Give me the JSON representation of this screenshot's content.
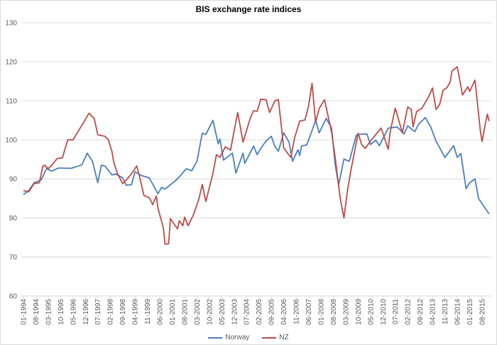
{
  "chart_data": {
    "type": "line",
    "title": "BIS exchange rate indices",
    "xlabel": "",
    "ylabel": "",
    "ylim": [
      60,
      130
    ],
    "yticks": [
      "60",
      "70",
      "80",
      "90",
      "100",
      "110",
      "120",
      "130"
    ],
    "xrange": [
      "01-1994",
      "12-2015"
    ],
    "xticks": [
      "01-1994",
      "08-1994",
      "03-1995",
      "10-1995",
      "05-1996",
      "12-1996",
      "07-1997",
      "02-1998",
      "09-1998",
      "04-1999",
      "11-1999",
      "06-2000",
      "01-2001",
      "08-2001",
      "03-2002",
      "10-2002",
      "05-2003",
      "12-2003",
      "07-2004",
      "02-2005",
      "09-2005",
      "04-2006",
      "11-2006",
      "06-2007",
      "01-2008",
      "08-2008",
      "03-2009",
      "10-2009",
      "05-2010",
      "12-2010",
      "07-2011",
      "02-2012",
      "09-2012",
      "04-2013",
      "11-2013",
      "06-2014",
      "01-2015",
      "08-2015"
    ],
    "grid": "horizontal",
    "legend": "bottom",
    "series": [
      {
        "name": "Norway",
        "color": "#4a7ebb",
        "points": [
          [
            "01-1994",
            86
          ],
          [
            "04-1994",
            87
          ],
          [
            "07-1994",
            89
          ],
          [
            "11-1994",
            89.7
          ],
          [
            "02-1995",
            92.6
          ],
          [
            "05-1995",
            92
          ],
          [
            "09-1995",
            92.8
          ],
          [
            "04-1996",
            92.7
          ],
          [
            "10-1996",
            93.6
          ],
          [
            "01-1997",
            96.6
          ],
          [
            "04-1997",
            94.5
          ],
          [
            "07-1997",
            89
          ],
          [
            "09-1997",
            93.5
          ],
          [
            "11-1997",
            93.3
          ],
          [
            "03-1998",
            91
          ],
          [
            "05-1998",
            91.3
          ],
          [
            "09-1998",
            90.3
          ],
          [
            "11-1998",
            88.4
          ],
          [
            "02-1999",
            88.5
          ],
          [
            "04-1999",
            91.8
          ],
          [
            "08-1999",
            90.8
          ],
          [
            "12-1999",
            90.3
          ],
          [
            "05-2000",
            86.2
          ],
          [
            "07-2000",
            87.8
          ],
          [
            "09-2000",
            87.4
          ],
          [
            "12-2000",
            88.5
          ],
          [
            "04-2001",
            90
          ],
          [
            "09-2001",
            92.6
          ],
          [
            "12-2001",
            92.1
          ],
          [
            "03-2002",
            94.5
          ],
          [
            "06-2002",
            101.7
          ],
          [
            "08-2002",
            101.4
          ],
          [
            "12-2002",
            105
          ],
          [
            "03-2003",
            99
          ],
          [
            "04-2003",
            100.2
          ],
          [
            "06-2003",
            94.8
          ],
          [
            "11-2003",
            96.6
          ],
          [
            "01-2004",
            91.5
          ],
          [
            "05-2004",
            96.6
          ],
          [
            "06-2004",
            94
          ],
          [
            "11-2004",
            98.4
          ],
          [
            "01-2005",
            96.2
          ],
          [
            "03-2005",
            97.8
          ],
          [
            "06-2005",
            99.7
          ],
          [
            "09-2005",
            100.9
          ],
          [
            "11-2005",
            98.3
          ],
          [
            "01-2006",
            97.1
          ],
          [
            "04-2006",
            101.8
          ],
          [
            "07-2006",
            99.4
          ],
          [
            "09-2006",
            94.5
          ],
          [
            "12-2006",
            97.5
          ],
          [
            "01-2007",
            96
          ],
          [
            "02-2007",
            98.4
          ],
          [
            "05-2007",
            98.7
          ],
          [
            "07-2007",
            101.1
          ],
          [
            "10-2007",
            105
          ],
          [
            "12-2007",
            101.8
          ],
          [
            "04-2008",
            105.5
          ],
          [
            "07-2008",
            103
          ],
          [
            "09-2008",
            93.9
          ],
          [
            "11-2008",
            88.4
          ],
          [
            "02-2009",
            95.1
          ],
          [
            "05-2009",
            94.5
          ],
          [
            "09-2009",
            101.2
          ],
          [
            "12-2009",
            101.5
          ],
          [
            "03-2010",
            101.5
          ],
          [
            "05-2010",
            98.8
          ],
          [
            "08-2010",
            99.9
          ],
          [
            "10-2010",
            98.5
          ],
          [
            "03-2011",
            103
          ],
          [
            "08-2011",
            103.3
          ],
          [
            "12-2011",
            101.5
          ],
          [
            "02-2012",
            103.6
          ],
          [
            "06-2012",
            102.1
          ],
          [
            "08-2012",
            103.9
          ],
          [
            "12-2012",
            105.7
          ],
          [
            "03-2013",
            103.3
          ],
          [
            "06-2013",
            99.7
          ],
          [
            "11-2013",
            95.5
          ],
          [
            "04-2014",
            98.5
          ],
          [
            "06-2014",
            95.5
          ],
          [
            "08-2014",
            96.5
          ],
          [
            "11-2014",
            87.5
          ],
          [
            "01-2015",
            89
          ],
          [
            "04-2015",
            90
          ],
          [
            "06-2015",
            85
          ],
          [
            "09-2015",
            83
          ],
          [
            "12-2015",
            81
          ]
        ]
      },
      {
        "name": "NZ",
        "color": "#be4b48",
        "points": [
          [
            "01-1994",
            87
          ],
          [
            "04-1994",
            86.7
          ],
          [
            "07-1994",
            88.8
          ],
          [
            "10-1994",
            89
          ],
          [
            "12-1994",
            93.3
          ],
          [
            "01-1995",
            93.5
          ],
          [
            "03-1995",
            92.6
          ],
          [
            "05-1995",
            93.5
          ],
          [
            "08-1995",
            95.2
          ],
          [
            "11-1995",
            95.4
          ],
          [
            "02-1996",
            100
          ],
          [
            "05-1996",
            100
          ],
          [
            "07-1996",
            101.5
          ],
          [
            "11-1996",
            104.5
          ],
          [
            "02-1997",
            106.8
          ],
          [
            "05-1997",
            105.4
          ],
          [
            "07-1997",
            101.3
          ],
          [
            "11-1997",
            100.9
          ],
          [
            "01-1998",
            100
          ],
          [
            "03-1998",
            97
          ],
          [
            "04-1998",
            94.3
          ],
          [
            "06-1998",
            91.5
          ],
          [
            "09-1998",
            88.8
          ],
          [
            "11-1998",
            89.7
          ],
          [
            "02-1999",
            91.3
          ],
          [
            "05-1999",
            93.3
          ],
          [
            "07-1999",
            89.8
          ],
          [
            "09-1999",
            85.8
          ],
          [
            "12-1999",
            85.2
          ],
          [
            "02-2000",
            83.4
          ],
          [
            "04-2000",
            85.6
          ],
          [
            "05-2000",
            82.5
          ],
          [
            "08-2000",
            77.5
          ],
          [
            "09-2000",
            73.3
          ],
          [
            "11-2000",
            73.4
          ],
          [
            "12-2000",
            79.8
          ],
          [
            "04-2001",
            77.2
          ],
          [
            "05-2001",
            79.3
          ],
          [
            "07-2001",
            78
          ],
          [
            "08-2001",
            80.2
          ],
          [
            "10-2001",
            78
          ],
          [
            "01-2002",
            80.8
          ],
          [
            "04-2002",
            84.7
          ],
          [
            "06-2002",
            88.6
          ],
          [
            "08-2002",
            84.2
          ],
          [
            "12-2002",
            91.4
          ],
          [
            "02-2003",
            96.2
          ],
          [
            "04-2003",
            95.5
          ],
          [
            "07-2003",
            98.2
          ],
          [
            "10-2003",
            97.4
          ],
          [
            "12-2003",
            102.4
          ],
          [
            "02-2004",
            107
          ],
          [
            "05-2004",
            99.4
          ],
          [
            "09-2004",
            105.4
          ],
          [
            "11-2004",
            107.5
          ],
          [
            "01-2005",
            107.3
          ],
          [
            "03-2005",
            110.4
          ],
          [
            "06-2005",
            110.3
          ],
          [
            "08-2005",
            107
          ],
          [
            "11-2005",
            110
          ],
          [
            "01-2006",
            110.3
          ],
          [
            "02-2006",
            106.2
          ],
          [
            "04-2006",
            97.9
          ],
          [
            "08-2006",
            95.5
          ],
          [
            "10-2006",
            100.3
          ],
          [
            "01-2007",
            104.8
          ],
          [
            "04-2007",
            105.1
          ],
          [
            "06-2007",
            108.6
          ],
          [
            "08-2007",
            114.5
          ],
          [
            "10-2007",
            104.5
          ],
          [
            "12-2007",
            108
          ],
          [
            "03-2008",
            110.3
          ],
          [
            "07-2008",
            102
          ],
          [
            "09-2008",
            95.7
          ],
          [
            "12-2008",
            84.7
          ],
          [
            "02-2009",
            80
          ],
          [
            "04-2009",
            87
          ],
          [
            "06-2009",
            92.4
          ],
          [
            "08-2009",
            97
          ],
          [
            "10-2009",
            101.7
          ],
          [
            "12-2009",
            98.8
          ],
          [
            "02-2010",
            97.8
          ],
          [
            "06-2010",
            100.3
          ],
          [
            "11-2010",
            103
          ],
          [
            "03-2011",
            97.6
          ],
          [
            "04-2011",
            101.8
          ],
          [
            "07-2011",
            108.1
          ],
          [
            "08-2011",
            106.6
          ],
          [
            "11-2011",
            101.8
          ],
          [
            "02-2012",
            108.4
          ],
          [
            "04-2012",
            107.8
          ],
          [
            "05-2012",
            103.3
          ],
          [
            "07-2012",
            107.2
          ],
          [
            "10-2012",
            108.1
          ],
          [
            "02-2013",
            111.2
          ],
          [
            "04-2013",
            113.3
          ],
          [
            "06-2013",
            107.8
          ],
          [
            "08-2013",
            109
          ],
          [
            "10-2013",
            112.7
          ],
          [
            "12-2013",
            113.3
          ],
          [
            "02-2014",
            114.8
          ],
          [
            "03-2014",
            117.6
          ],
          [
            "06-2014",
            118.7
          ],
          [
            "09-2014",
            111.5
          ],
          [
            "12-2014",
            113.6
          ],
          [
            "01-2015",
            112.4
          ],
          [
            "04-2015",
            115.3
          ],
          [
            "07-2015",
            102.4
          ],
          [
            "08-2015",
            99.6
          ],
          [
            "10-2015",
            104.4
          ],
          [
            "11-2015",
            106.6
          ],
          [
            "12-2015",
            104.8
          ]
        ]
      }
    ]
  }
}
